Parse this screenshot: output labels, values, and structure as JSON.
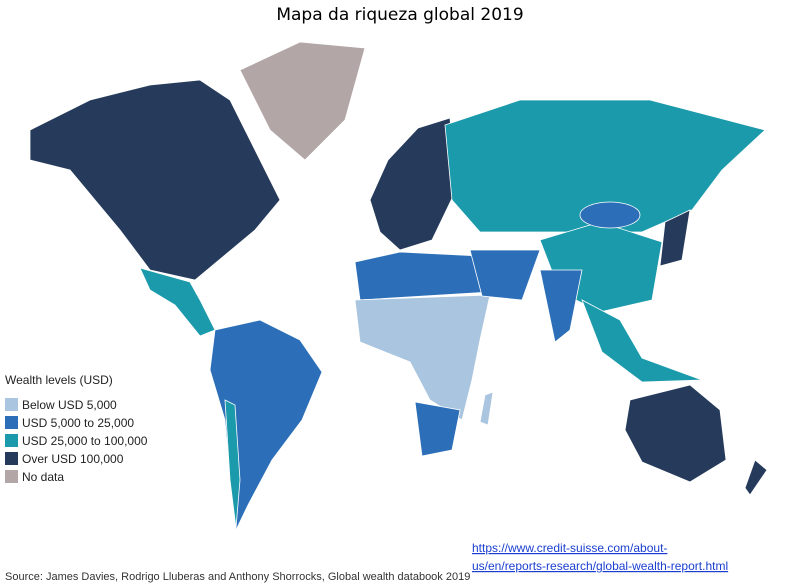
{
  "title": "Mapa da riqueza global 2019",
  "legend": {
    "title": "Wealth levels (USD)",
    "items": [
      {
        "label": "Below USD 5,000",
        "color": "#a9c5df"
      },
      {
        "label": "USD 5,000 to 25,000",
        "color": "#2c6fb8"
      },
      {
        "label": "USD 25,000 to 100,000",
        "color": "#1a9aab"
      },
      {
        "label": "Over USD 100,000",
        "color": "#263b5b"
      },
      {
        "label": "No data",
        "color": "#b3a6a6"
      }
    ]
  },
  "source": "Source: James Davies, Rodrigo Lluberas and Anthony Shorrocks, Global wealth databook 2019",
  "link": [
    "https://www.credit-suisse.com/about-",
    "us/en/reports-research/global-wealth-report.html"
  ]
}
